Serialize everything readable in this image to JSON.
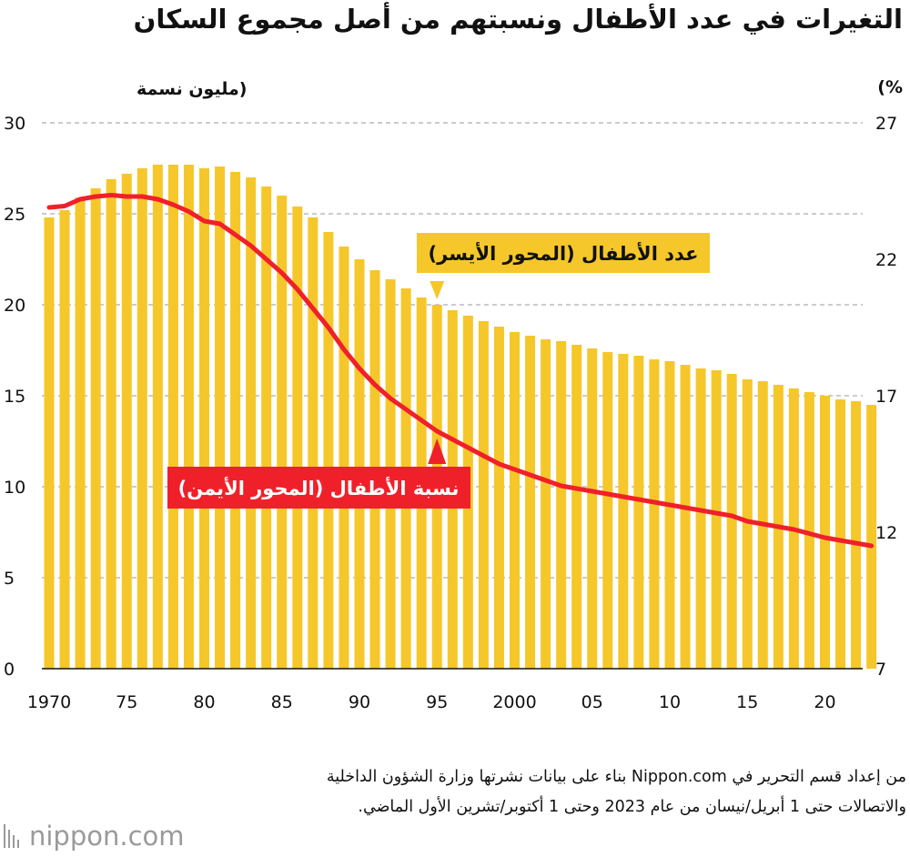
{
  "title": "التغيرات في عدد الأطفال ونسبتهم من أصل مجموع السكان",
  "source": "من إعداد قسم التحرير في Nippon.com بناء على بيانات نشرتها وزارة الشؤون الداخلية والاتصالات حتى 1 أبريل/نيسان من عام 2023 وحتى 1 أكتوبر/تشرين الأول الماضي.",
  "logo": {
    "text": "nippon.com",
    "mark": "nippon-bars-icon"
  },
  "colors": {
    "bars": "#F5C72A",
    "line": "#F0202A",
    "label_bg_bars": "#F5C72A",
    "label_bg_line": "#F0202A"
  },
  "chart_data": {
    "type": "bar",
    "title": "التغيرات في عدد الأطفال ونسبتهم من أصل مجموع السكان",
    "x": [
      1970,
      1971,
      1972,
      1973,
      1974,
      1975,
      1976,
      1977,
      1978,
      1979,
      1980,
      1981,
      1982,
      1983,
      1984,
      1985,
      1986,
      1987,
      1988,
      1989,
      1990,
      1991,
      1992,
      1993,
      1994,
      1995,
      1996,
      1997,
      1998,
      1999,
      2000,
      2001,
      2002,
      2003,
      2004,
      2005,
      2006,
      2007,
      2008,
      2009,
      2010,
      2011,
      2012,
      2013,
      2014,
      2015,
      2016,
      2017,
      2018,
      2019,
      2020,
      2021,
      2022,
      2023
    ],
    "x_tick_labels": [
      "1970",
      "75",
      "80",
      "85",
      "90",
      "95",
      "2000",
      "05",
      "10",
      "15",
      "20"
    ],
    "left_axis": {
      "label": "(مليون نسمة",
      "ticks": [
        "0",
        "5",
        "10",
        "15",
        "20",
        "25",
        "30"
      ],
      "range": [
        0,
        30
      ]
    },
    "right_axis": {
      "label": "(%",
      "ticks": [
        "7",
        "12",
        "17",
        "22",
        "27"
      ],
      "range": [
        7,
        27
      ]
    },
    "grid": "horizontal dashed",
    "series": [
      {
        "name": "عدد الأطفال (المحور الأيسر)",
        "type": "bar",
        "axis": "left",
        "values": [
          24.8,
          25.2,
          25.9,
          26.4,
          26.9,
          27.2,
          27.5,
          27.7,
          27.7,
          27.7,
          27.5,
          27.6,
          27.3,
          27.0,
          26.5,
          26.0,
          25.4,
          24.8,
          24.0,
          23.2,
          22.5,
          21.9,
          21.4,
          20.9,
          20.4,
          20.0,
          19.7,
          19.4,
          19.1,
          18.8,
          18.5,
          18.3,
          18.1,
          18.0,
          17.8,
          17.6,
          17.4,
          17.3,
          17.2,
          17.0,
          16.9,
          16.7,
          16.5,
          16.4,
          16.2,
          15.9,
          15.8,
          15.6,
          15.4,
          15.2,
          15.0,
          14.8,
          14.7,
          14.5
        ]
      },
      {
        "name": "نسبة الأطفال (المحور الأيمن)",
        "type": "line",
        "axis": "right",
        "values": [
          23.9,
          23.95,
          24.2,
          24.3,
          24.35,
          24.3,
          24.3,
          24.2,
          24.0,
          23.75,
          23.4,
          23.3,
          22.9,
          22.5,
          22.0,
          21.5,
          20.9,
          20.2,
          19.5,
          18.7,
          18.0,
          17.4,
          16.9,
          16.5,
          16.1,
          15.7,
          15.4,
          15.1,
          14.8,
          14.5,
          14.3,
          14.1,
          13.9,
          13.7,
          13.6,
          13.5,
          13.4,
          13.3,
          13.2,
          13.1,
          13.0,
          12.9,
          12.8,
          12.7,
          12.6,
          12.4,
          12.3,
          12.2,
          12.1,
          11.95,
          11.8,
          11.7,
          11.6,
          11.5
        ]
      }
    ]
  }
}
